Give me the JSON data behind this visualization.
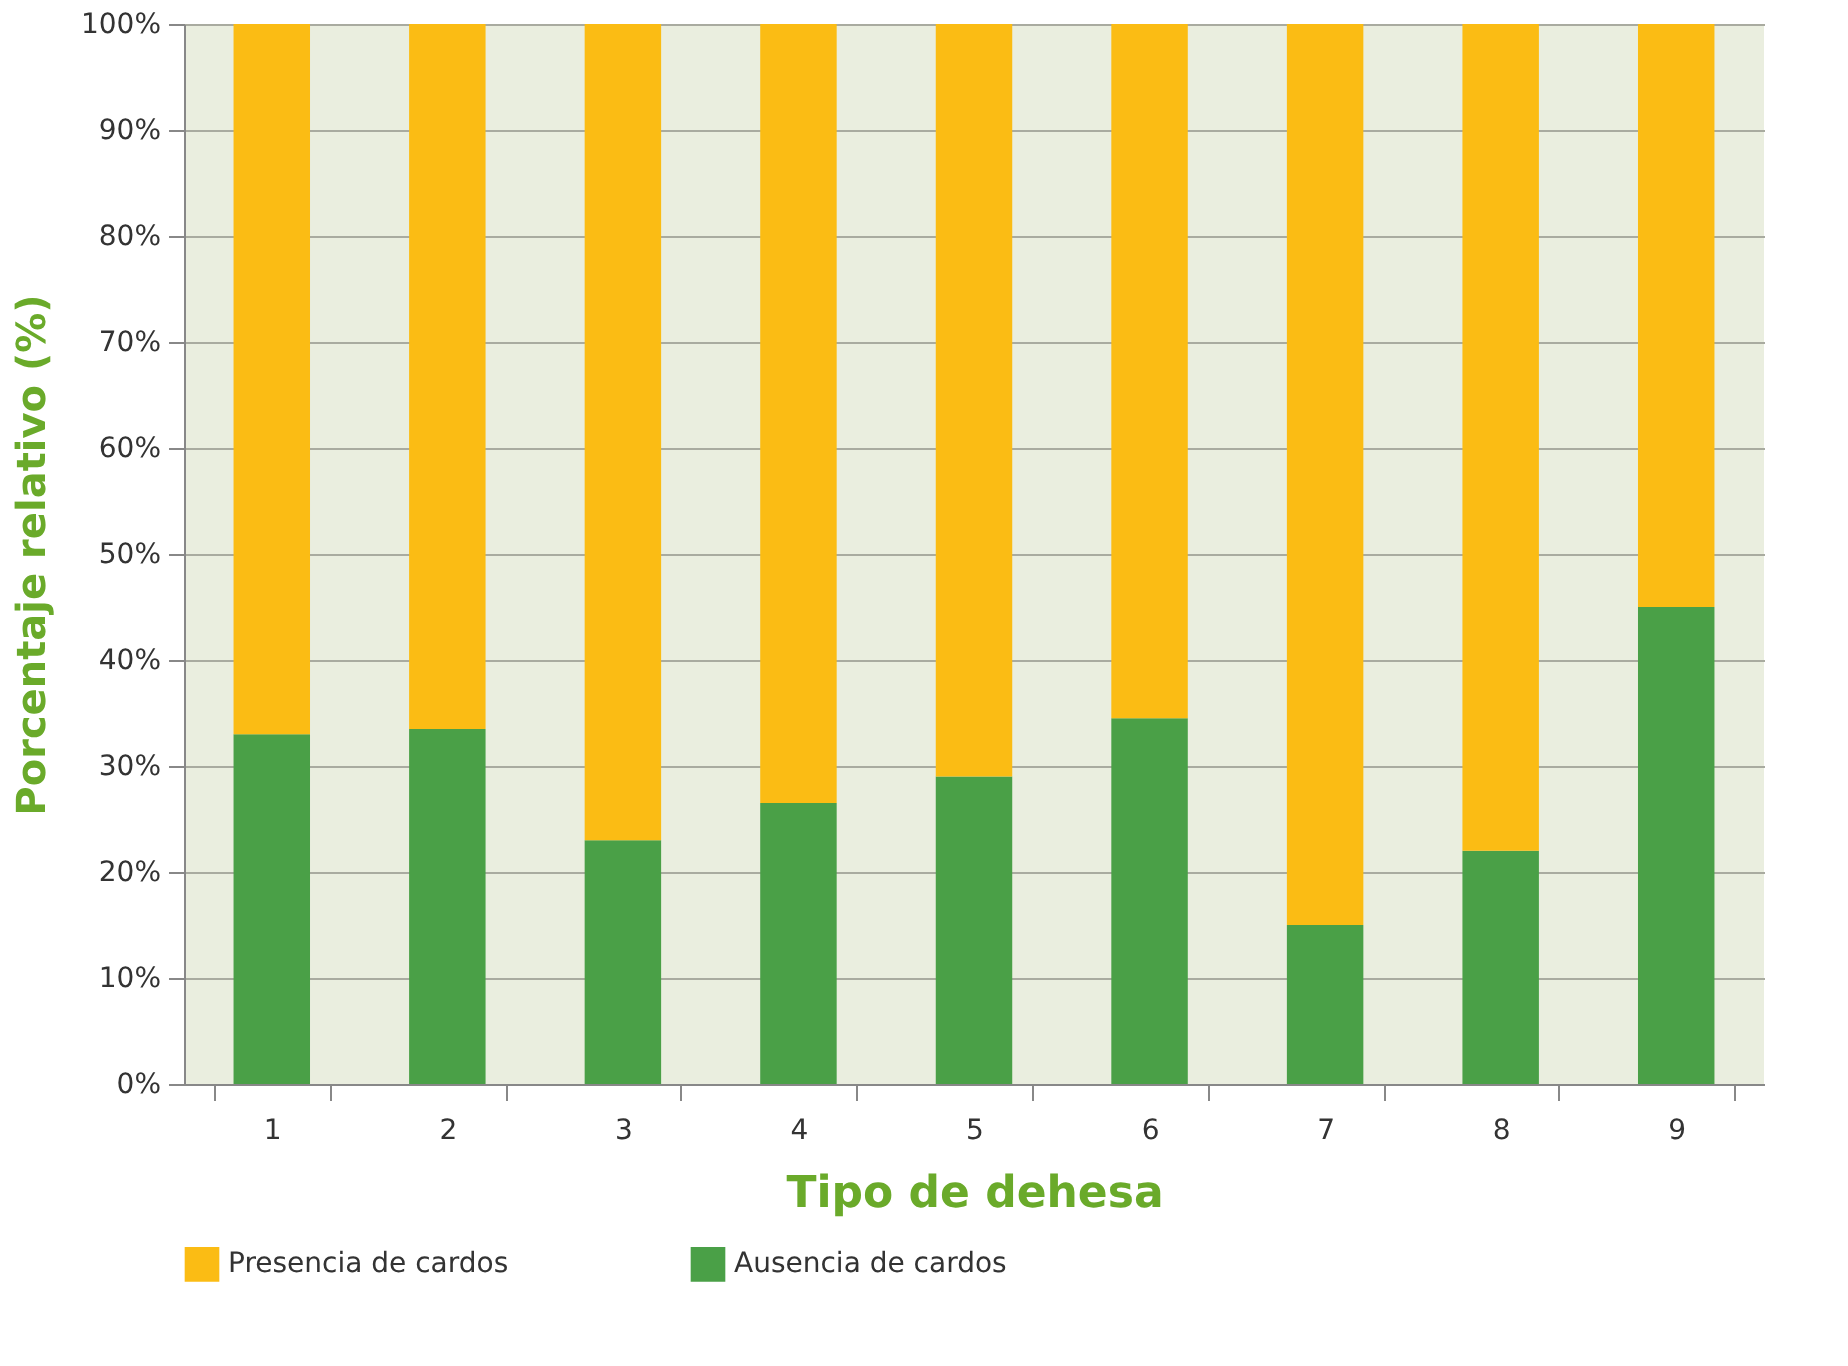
{
  "chart_data": {
    "type": "bar",
    "stacked": true,
    "xlabel": "Tipo de dehesa",
    "ylabel": "Porcentaje relativo (%)",
    "categories": [
      "1",
      "2",
      "3",
      "4",
      "5",
      "6",
      "7",
      "8",
      "9"
    ],
    "series": [
      {
        "name": "Ausencia de cardos",
        "color": "#4aa047",
        "values": [
          33,
          33.5,
          23,
          26.5,
          29,
          34.5,
          15,
          22,
          45
        ]
      },
      {
        "name": "Presencia de cardos",
        "color": "#fbbc14",
        "values": [
          67,
          66.5,
          77,
          73.5,
          71,
          65.5,
          85,
          78,
          55
        ]
      }
    ],
    "ylim": [
      0,
      100
    ],
    "yticks": [
      {
        "value": 0,
        "label": "0%"
      },
      {
        "value": 10,
        "label": "10%"
      },
      {
        "value": 20,
        "label": "20%"
      },
      {
        "value": 30,
        "label": "30%"
      },
      {
        "value": 40,
        "label": "40%"
      },
      {
        "value": 50,
        "label": "50%"
      },
      {
        "value": 60,
        "label": "60%"
      },
      {
        "value": 70,
        "label": "70%"
      },
      {
        "value": 80,
        "label": "80%"
      },
      {
        "value": 90,
        "label": "90%"
      },
      {
        "value": 100,
        "label": "100%"
      }
    ],
    "grid": "y",
    "legend": "bottom"
  }
}
